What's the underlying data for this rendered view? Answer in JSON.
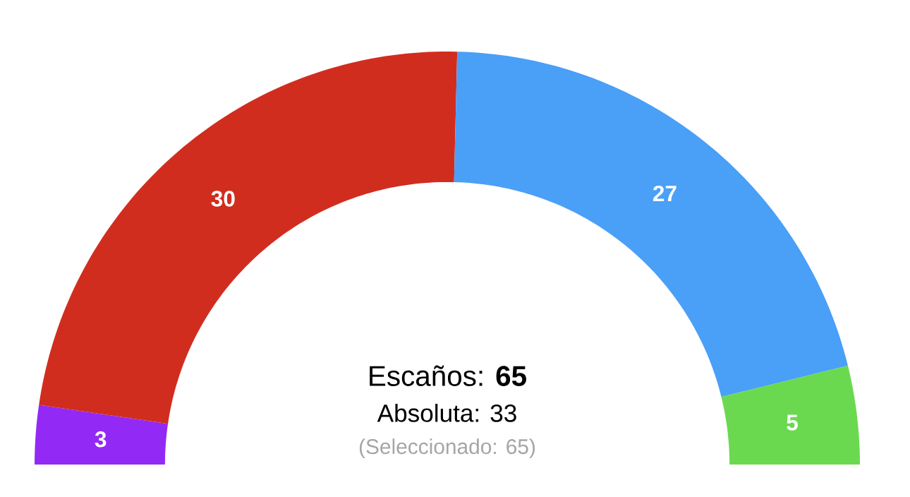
{
  "chart_data": {
    "type": "donut",
    "categories": [
      null,
      null,
      null,
      null
    ],
    "values": [
      3,
      30,
      27,
      5
    ],
    "colors": [
      "#9329f5",
      "#d12d1f",
      "#4a9ff7",
      "#6ad94f"
    ],
    "data_labels": true,
    "annotations": [
      "Escaños: **65**",
      "Absoluta: 33",
      "(Seleccionado: 65)"
    ]
  }
}
